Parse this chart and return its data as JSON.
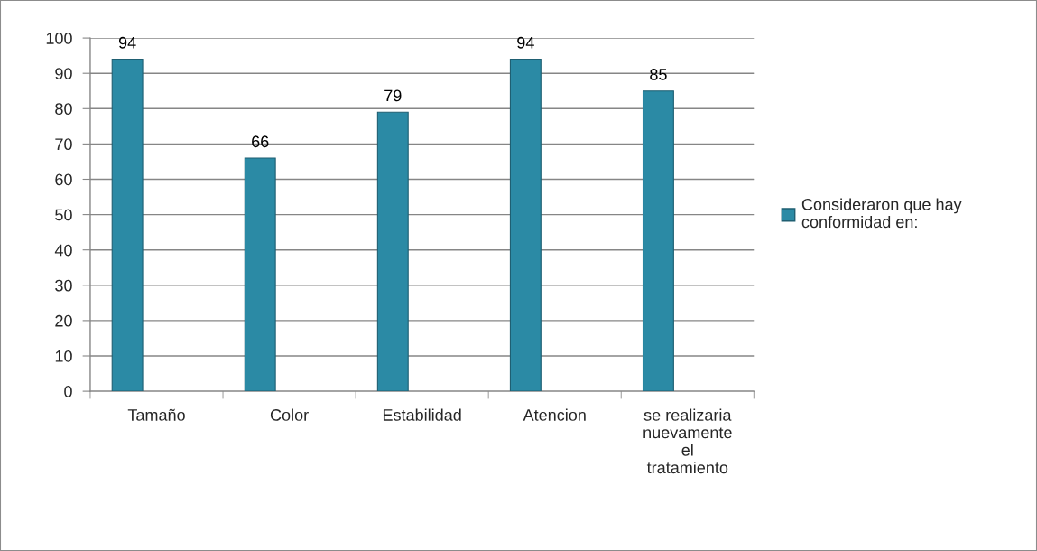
{
  "chart_data": {
    "type": "bar",
    "categories": [
      "Tamaño",
      "Color",
      "Estabilidad",
      "Atencion",
      "se realizaria\nnuevamente\nel\ntratamiento"
    ],
    "series": [
      {
        "name": "Consideraron que hay\nconformidad en:",
        "color": "#2b8aa5",
        "values": [
          94,
          66,
          79,
          94,
          85
        ]
      }
    ],
    "ylim": [
      0,
      100
    ],
    "yticks": [
      0,
      10,
      20,
      30,
      40,
      50,
      60,
      70,
      80,
      90,
      100
    ],
    "grid": "y",
    "legend": "right",
    "data_labels": true
  }
}
